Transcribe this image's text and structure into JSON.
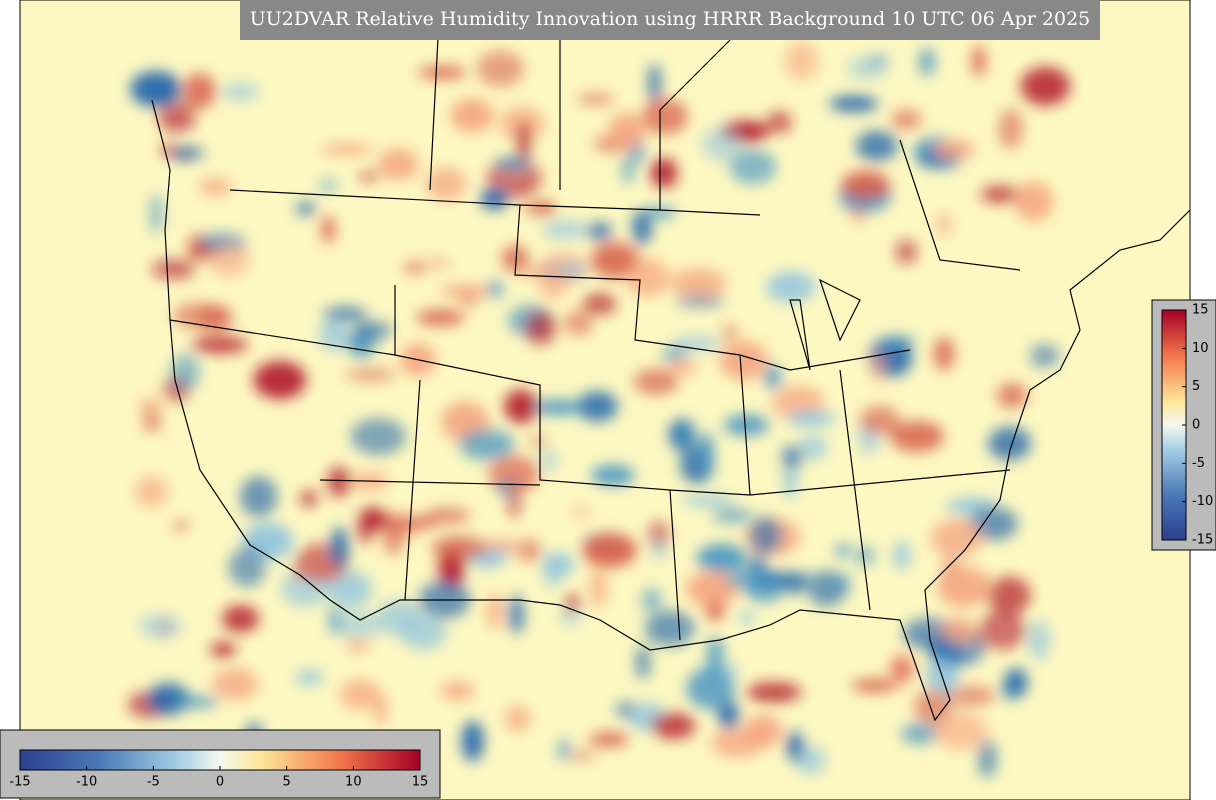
{
  "title": "UU2DVAR Relative Humidity Innovation using HRRR Background 10 UTC 06 Apr 2025",
  "colorbar_right": {
    "lim": [
      -15,
      15
    ],
    "ticks": [
      15,
      10,
      5,
      0,
      -5,
      -10,
      -15
    ]
  },
  "colorbar_bottom": {
    "lim": [
      -15,
      15
    ],
    "ticks": [
      -15,
      -10,
      -5,
      0,
      5,
      10,
      15
    ]
  }
}
